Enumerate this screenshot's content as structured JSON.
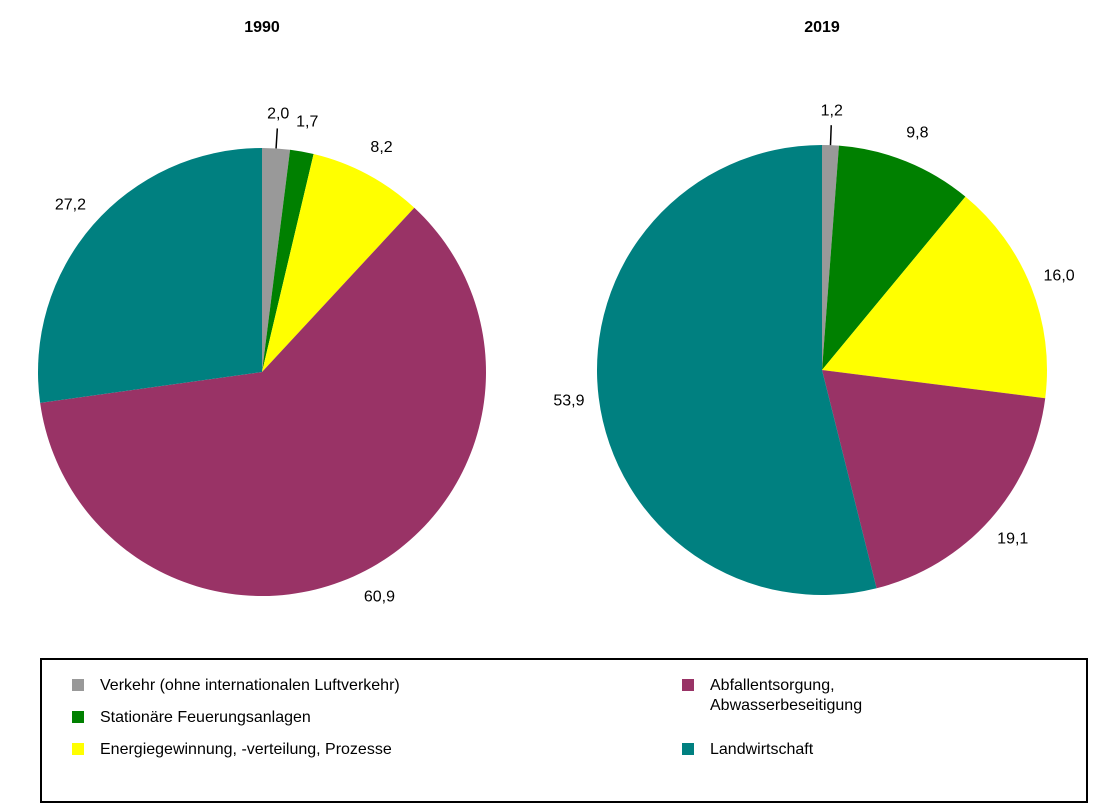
{
  "chart_data": [
    {
      "type": "pie",
      "title": "1990",
      "categories": [
        "Verkehr (ohne internationalen Luftverkehr)",
        "Stationäre Feuerungsanlagen",
        "Energiegewinnung, -verteilung, Prozesse",
        "Abfallentsorgung, Abwasserbeseitigung",
        "Landwirtschaft"
      ],
      "values": [
        2.0,
        1.7,
        8.2,
        60.9,
        27.2
      ],
      "value_labels": [
        "2,0",
        "1,7",
        "8,2",
        "60,9",
        "27,2"
      ],
      "colors": [
        "#999999",
        "#008000",
        "#ffff00",
        "#993366",
        "#008080"
      ]
    },
    {
      "type": "pie",
      "title": "2019",
      "values": [
        1.2,
        9.8,
        16.0,
        19.1,
        53.9
      ],
      "value_labels": [
        "1,2",
        "9,8",
        "16,0",
        "19,1",
        "53,9"
      ],
      "colors": [
        "#999999",
        "#008000",
        "#ffff00",
        "#993366",
        "#008080"
      ]
    }
  ]
}
